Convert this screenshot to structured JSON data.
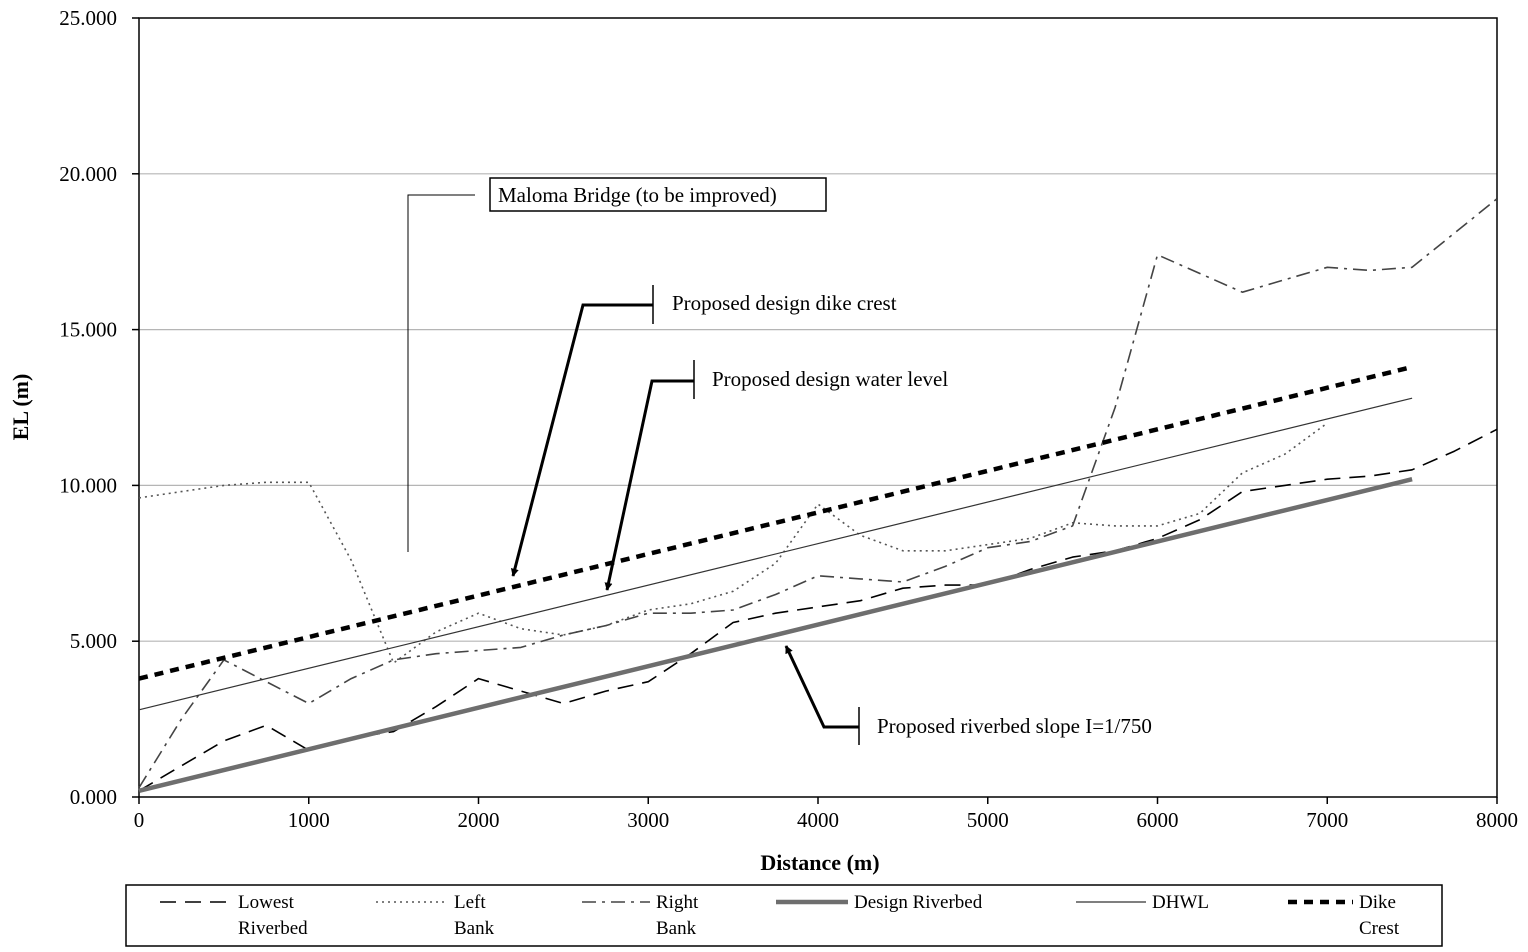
{
  "chart_data": {
    "type": "line",
    "xlabel": "Distance (m)",
    "ylabel": "EL (m)",
    "xlim": [
      0,
      8000
    ],
    "ylim": [
      0,
      25
    ],
    "x_ticks": [
      "0",
      "1000",
      "2000",
      "3000",
      "4000",
      "5000",
      "6000",
      "7000",
      "8000"
    ],
    "y_ticks": [
      "0.000",
      "5.000",
      "10.000",
      "15.000",
      "20.000",
      "25.000"
    ],
    "grid": "horizontal",
    "legend_position": "bottom",
    "series": [
      {
        "name_lines": [
          "Lowest",
          "Riverbed"
        ],
        "style": "dashed-long",
        "color": "#000000",
        "points": [
          [
            0,
            0.2
          ],
          [
            250,
            1.0
          ],
          [
            500,
            1.8
          ],
          [
            750,
            2.3
          ],
          [
            1000,
            1.5
          ],
          [
            1250,
            1.9
          ],
          [
            1500,
            2.1
          ],
          [
            1750,
            2.9
          ],
          [
            2000,
            3.8
          ],
          [
            2250,
            3.4
          ],
          [
            2500,
            3.0
          ],
          [
            2750,
            3.4
          ],
          [
            3000,
            3.7
          ],
          [
            3250,
            4.6
          ],
          [
            3500,
            5.6
          ],
          [
            3750,
            5.9
          ],
          [
            4000,
            6.1
          ],
          [
            4250,
            6.3
          ],
          [
            4500,
            6.7
          ],
          [
            4750,
            6.8
          ],
          [
            5000,
            6.8
          ],
          [
            5250,
            7.3
          ],
          [
            5500,
            7.7
          ],
          [
            5750,
            7.9
          ],
          [
            6000,
            8.3
          ],
          [
            6250,
            8.9
          ],
          [
            6500,
            9.8
          ],
          [
            6750,
            10.0
          ],
          [
            7000,
            10.2
          ],
          [
            7250,
            10.3
          ],
          [
            7500,
            10.5
          ],
          [
            7750,
            11.1
          ],
          [
            8000,
            11.8
          ]
        ]
      },
      {
        "name_lines": [
          "Left",
          "Bank"
        ],
        "style": "dotted",
        "color": "#555555",
        "points": [
          [
            0,
            9.6
          ],
          [
            250,
            9.8
          ],
          [
            500,
            10.0
          ],
          [
            750,
            10.1
          ],
          [
            1000,
            10.1
          ],
          [
            1250,
            7.6
          ],
          [
            1500,
            4.3
          ],
          [
            1750,
            5.3
          ],
          [
            2000,
            5.9
          ],
          [
            2250,
            5.4
          ],
          [
            2500,
            5.2
          ],
          [
            2750,
            5.5
          ],
          [
            3000,
            6.0
          ],
          [
            3250,
            6.2
          ],
          [
            3500,
            6.6
          ],
          [
            3750,
            7.5
          ],
          [
            4000,
            9.4
          ],
          [
            4250,
            8.4
          ],
          [
            4500,
            7.9
          ],
          [
            4750,
            7.9
          ],
          [
            5000,
            8.1
          ],
          [
            5250,
            8.3
          ],
          [
            5500,
            8.8
          ],
          [
            5750,
            8.7
          ],
          [
            6000,
            8.7
          ],
          [
            6250,
            9.1
          ],
          [
            6500,
            10.4
          ],
          [
            6750,
            11.0
          ],
          [
            7000,
            12.0
          ]
        ]
      },
      {
        "name_lines": [
          "Right",
          "Bank"
        ],
        "style": "dashdot",
        "color": "#444444",
        "points": [
          [
            0,
            0.3
          ],
          [
            250,
            2.5
          ],
          [
            500,
            4.4
          ],
          [
            750,
            3.7
          ],
          [
            1000,
            3.0
          ],
          [
            1250,
            3.8
          ],
          [
            1500,
            4.4
          ],
          [
            1750,
            4.6
          ],
          [
            2000,
            4.7
          ],
          [
            2250,
            4.8
          ],
          [
            2500,
            5.2
          ],
          [
            2750,
            5.5
          ],
          [
            3000,
            5.9
          ],
          [
            3250,
            5.9
          ],
          [
            3500,
            6.0
          ],
          [
            3750,
            6.5
          ],
          [
            4000,
            7.1
          ],
          [
            4250,
            7.0
          ],
          [
            4500,
            6.9
          ],
          [
            4750,
            7.4
          ],
          [
            5000,
            8.0
          ],
          [
            5250,
            8.2
          ],
          [
            5500,
            8.7
          ],
          [
            5750,
            12.5
          ],
          [
            6000,
            17.4
          ],
          [
            6250,
            16.8
          ],
          [
            6500,
            16.2
          ],
          [
            6750,
            16.6
          ],
          [
            7000,
            17.0
          ],
          [
            7250,
            16.9
          ],
          [
            7500,
            17.0
          ],
          [
            7750,
            18.1
          ],
          [
            8000,
            19.2
          ]
        ]
      },
      {
        "name_lines": [
          "Design Riverbed"
        ],
        "style": "thick-solid",
        "color": "#6e6e6e",
        "points": [
          [
            0,
            0.2
          ],
          [
            7500,
            10.2
          ]
        ]
      },
      {
        "name_lines": [
          "DHWL"
        ],
        "style": "thin-solid",
        "color": "#333333",
        "points": [
          [
            0,
            2.8
          ],
          [
            7500,
            12.8
          ]
        ]
      },
      {
        "name_lines": [
          "Dike",
          "Crest"
        ],
        "style": "thick-dashed",
        "color": "#000000",
        "points": [
          [
            0,
            3.8
          ],
          [
            7500,
            13.8
          ]
        ]
      }
    ],
    "annotations": [
      {
        "text": "Maloma Bridge (to be improved)",
        "boxed": true
      },
      {
        "text": "Proposed design dike crest",
        "boxed": false
      },
      {
        "text": "Proposed design water level",
        "boxed": false
      },
      {
        "text": "Proposed riverbed slope I=1/750",
        "boxed": false
      }
    ]
  }
}
